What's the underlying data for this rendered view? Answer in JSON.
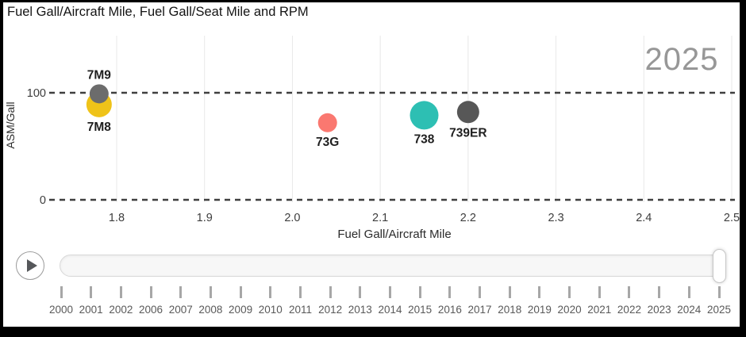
{
  "title": "Fuel Gall/Aircraft Mile, Fuel Gall/Seat Mile and RPM",
  "watermark_year": "2025",
  "colors": {
    "bubble_7M8": "#EFC319",
    "bubble_7M9": "#6C6C6C",
    "bubble_73G": "#FA7870",
    "bubble_738": "#2DBFB3",
    "bubble_739ER": "#575757",
    "grid_vertical": "#e8e8e8",
    "grid_dashed": "#3f3f3f",
    "watermark": "#979797"
  },
  "chart_data": {
    "type": "scatter",
    "title": "Fuel Gall/Aircraft Mile, Fuel Gall/Seat Mile and RPM",
    "xlabel": "Fuel Gall/Aircraft Mile",
    "ylabel": "ASM/Gall",
    "xlim": [
      1.75,
      2.5
    ],
    "ylim": [
      0,
      155
    ],
    "xticks": [
      1.8,
      1.9,
      2.0,
      2.1,
      2.2,
      2.3,
      2.4,
      2.5
    ],
    "yticks": [
      0,
      100
    ],
    "grid": {
      "vertical": "solid-light",
      "horizontal": "dashed-dark"
    },
    "current_year": "2025",
    "points": [
      {
        "name": "7M8",
        "x": 1.78,
        "y": 89,
        "r": 16,
        "color": "#EFC319",
        "label_position": "below"
      },
      {
        "name": "7M9",
        "x": 1.78,
        "y": 99,
        "r": 12,
        "color": "#6C6C6C",
        "label_position": "above"
      },
      {
        "name": "73G",
        "x": 2.04,
        "y": 72,
        "r": 12,
        "color": "#FA7870",
        "label_position": "below"
      },
      {
        "name": "738",
        "x": 2.15,
        "y": 79,
        "r": 18,
        "color": "#2DBFB3",
        "label_position": "below"
      },
      {
        "name": "739ER",
        "x": 2.2,
        "y": 82,
        "r": 14,
        "color": "#575757",
        "label_position": "below"
      }
    ]
  },
  "timeline": {
    "play_icon": "▶",
    "selected_year": "2025",
    "years": [
      "2000",
      "2001",
      "2002",
      "2006",
      "2007",
      "2008",
      "2009",
      "2010",
      "2011",
      "2012",
      "2013",
      "2014",
      "2015",
      "2016",
      "2017",
      "2018",
      "2019",
      "2020",
      "2021",
      "2022",
      "2023",
      "2024",
      "2025"
    ]
  }
}
